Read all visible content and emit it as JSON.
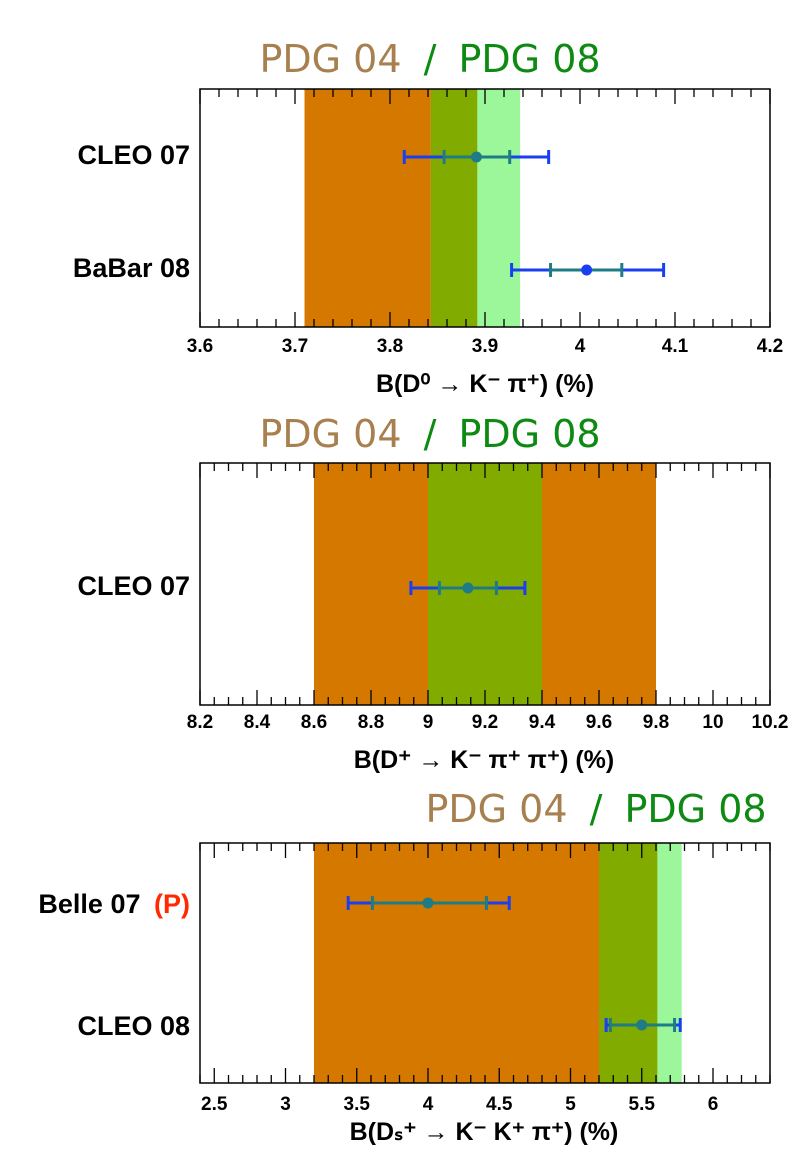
{
  "colors": {
    "pdg04": "#d47800",
    "pdg08": "#82ab00",
    "pdg08_light": "#9cf79a",
    "title04": "#a8804f",
    "title08": "#0c8a12",
    "point_blue": "#1a3ff0",
    "point_teal": "#1e7c86",
    "flag_red": "#ff2a00"
  },
  "chart_data": [
    {
      "type": "horizontal-interval",
      "title": {
        "pdg04": "PDG 04",
        "sep": "/",
        "pdg08": "PDG 08"
      },
      "xlabel": "B(D⁰ → K⁻ π⁺) (%)",
      "xlim": [
        3.6,
        4.2
      ],
      "major_ticks": [
        3.6,
        3.7,
        3.8,
        3.9,
        4.0,
        4.1,
        4.2
      ],
      "tick_labels": [
        "3.6",
        "3.7",
        "3.8",
        "3.9",
        "4",
        "4.1",
        "4.2"
      ],
      "bands": [
        {
          "name": "PDG 04",
          "range": [
            3.71,
            3.843
          ],
          "color": "#d47800"
        },
        {
          "name": "PDG 08",
          "range": [
            3.843,
            3.892
          ],
          "color": "#82ab00"
        },
        {
          "name": "PDG 08 outer",
          "range": [
            3.892,
            3.937
          ],
          "color": "#9cf79a"
        }
      ],
      "measurements": [
        {
          "label": "CLEO 07",
          "flag": "",
          "value": 3.891,
          "stat": [
            3.857,
            3.926
          ],
          "total": [
            3.815,
            3.967
          ]
        },
        {
          "label": "BaBar 08",
          "flag": "",
          "value": 4.007,
          "stat": [
            3.969,
            4.044
          ],
          "total": [
            3.928,
            4.088
          ]
        }
      ]
    },
    {
      "type": "horizontal-interval",
      "title": {
        "pdg04": "PDG 04",
        "sep": "/",
        "pdg08": "PDG 08"
      },
      "xlabel": "B(D⁺ → K⁻ π⁺ π⁺) (%)",
      "xlim": [
        8.2,
        10.2
      ],
      "major_ticks": [
        8.2,
        8.4,
        8.6,
        8.8,
        9.0,
        9.2,
        9.4,
        9.6,
        9.8,
        10.0,
        10.2
      ],
      "tick_labels": [
        "8.2",
        "8.4",
        "8.6",
        "8.8",
        "9",
        "9.2",
        "9.4",
        "9.6",
        "9.8",
        "10",
        "10.2"
      ],
      "bands": [
        {
          "name": "PDG 04",
          "range": [
            8.6,
            9.8
          ],
          "color": "#d47800"
        },
        {
          "name": "PDG 08",
          "range": [
            9.0,
            9.4
          ],
          "color": "#82ab00"
        }
      ],
      "measurements": [
        {
          "label": "CLEO 07",
          "flag": "",
          "value": 9.14,
          "stat": [
            9.04,
            9.24
          ],
          "total": [
            8.94,
            9.34
          ]
        }
      ]
    },
    {
      "type": "horizontal-interval",
      "title": {
        "pdg04": "PDG 04",
        "sep": "/",
        "pdg08": "PDG 08"
      },
      "xlabel": "B(Dₛ⁺ → K⁻ K⁺ π⁺) (%)",
      "xlim": [
        2.4,
        6.4
      ],
      "major_ticks": [
        2.5,
        3.0,
        3.5,
        4.0,
        4.5,
        5.0,
        5.5,
        6.0
      ],
      "tick_labels": [
        "2.5",
        "3",
        "3.5",
        "4",
        "4.5",
        "5",
        "5.5",
        "6"
      ],
      "bands": [
        {
          "name": "PDG 04",
          "range": [
            3.2,
            5.2
          ],
          "color": "#d47800"
        },
        {
          "name": "PDG 08",
          "range": [
            5.2,
            5.61
          ],
          "color": "#82ab00"
        },
        {
          "name": "PDG 08 outer",
          "range": [
            5.61,
            5.78
          ],
          "color": "#9cf79a"
        }
      ],
      "measurements": [
        {
          "label": "Belle 07",
          "flag": "(P)",
          "value": 4.0,
          "stat": [
            3.61,
            4.41
          ],
          "total": [
            3.44,
            4.57
          ]
        },
        {
          "label": "CLEO 08",
          "flag": "",
          "value": 5.5,
          "stat": [
            5.28,
            5.73
          ],
          "total": [
            5.25,
            5.77
          ]
        }
      ]
    }
  ]
}
